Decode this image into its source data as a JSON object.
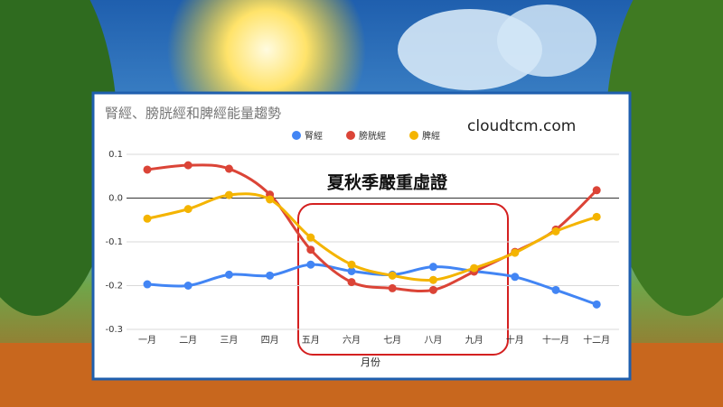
{
  "chart_data": {
    "type": "line",
    "title": "腎經、膀胱經和脾經能量趨勢",
    "annotations": [
      "cloudtcm.com",
      "夏秋季嚴重虛證"
    ],
    "x_label": "月份",
    "categories": [
      "一月",
      "二月",
      "三月",
      "四月",
      "五月",
      "六月",
      "七月",
      "八月",
      "九月",
      "十月",
      "十一月",
      "十二月"
    ],
    "series": [
      {
        "name": "腎經",
        "color": "#4285f4",
        "values": [
          -0.197,
          -0.2,
          -0.175,
          -0.177,
          -0.152,
          -0.167,
          -0.175,
          -0.157,
          -0.167,
          -0.18,
          -0.21,
          -0.243
        ]
      },
      {
        "name": "膀胱經",
        "color": "#db4437",
        "values": [
          0.065,
          0.075,
          0.067,
          0.008,
          -0.118,
          -0.192,
          -0.206,
          -0.21,
          -0.168,
          -0.123,
          -0.072,
          0.018
        ]
      },
      {
        "name": "脾經",
        "color": "#f4b400",
        "values": [
          -0.047,
          -0.025,
          0.007,
          -0.003,
          -0.09,
          -0.152,
          -0.177,
          -0.187,
          -0.16,
          -0.125,
          -0.076,
          -0.043
        ]
      }
    ],
    "ylim": [
      -0.3,
      0.1
    ],
    "yticks": [
      0.1,
      {
        "value": 0,
        "label": "0.0"
      },
      -0.1,
      -0.2,
      -0.3
    ],
    "grid": true,
    "legend": "top"
  }
}
